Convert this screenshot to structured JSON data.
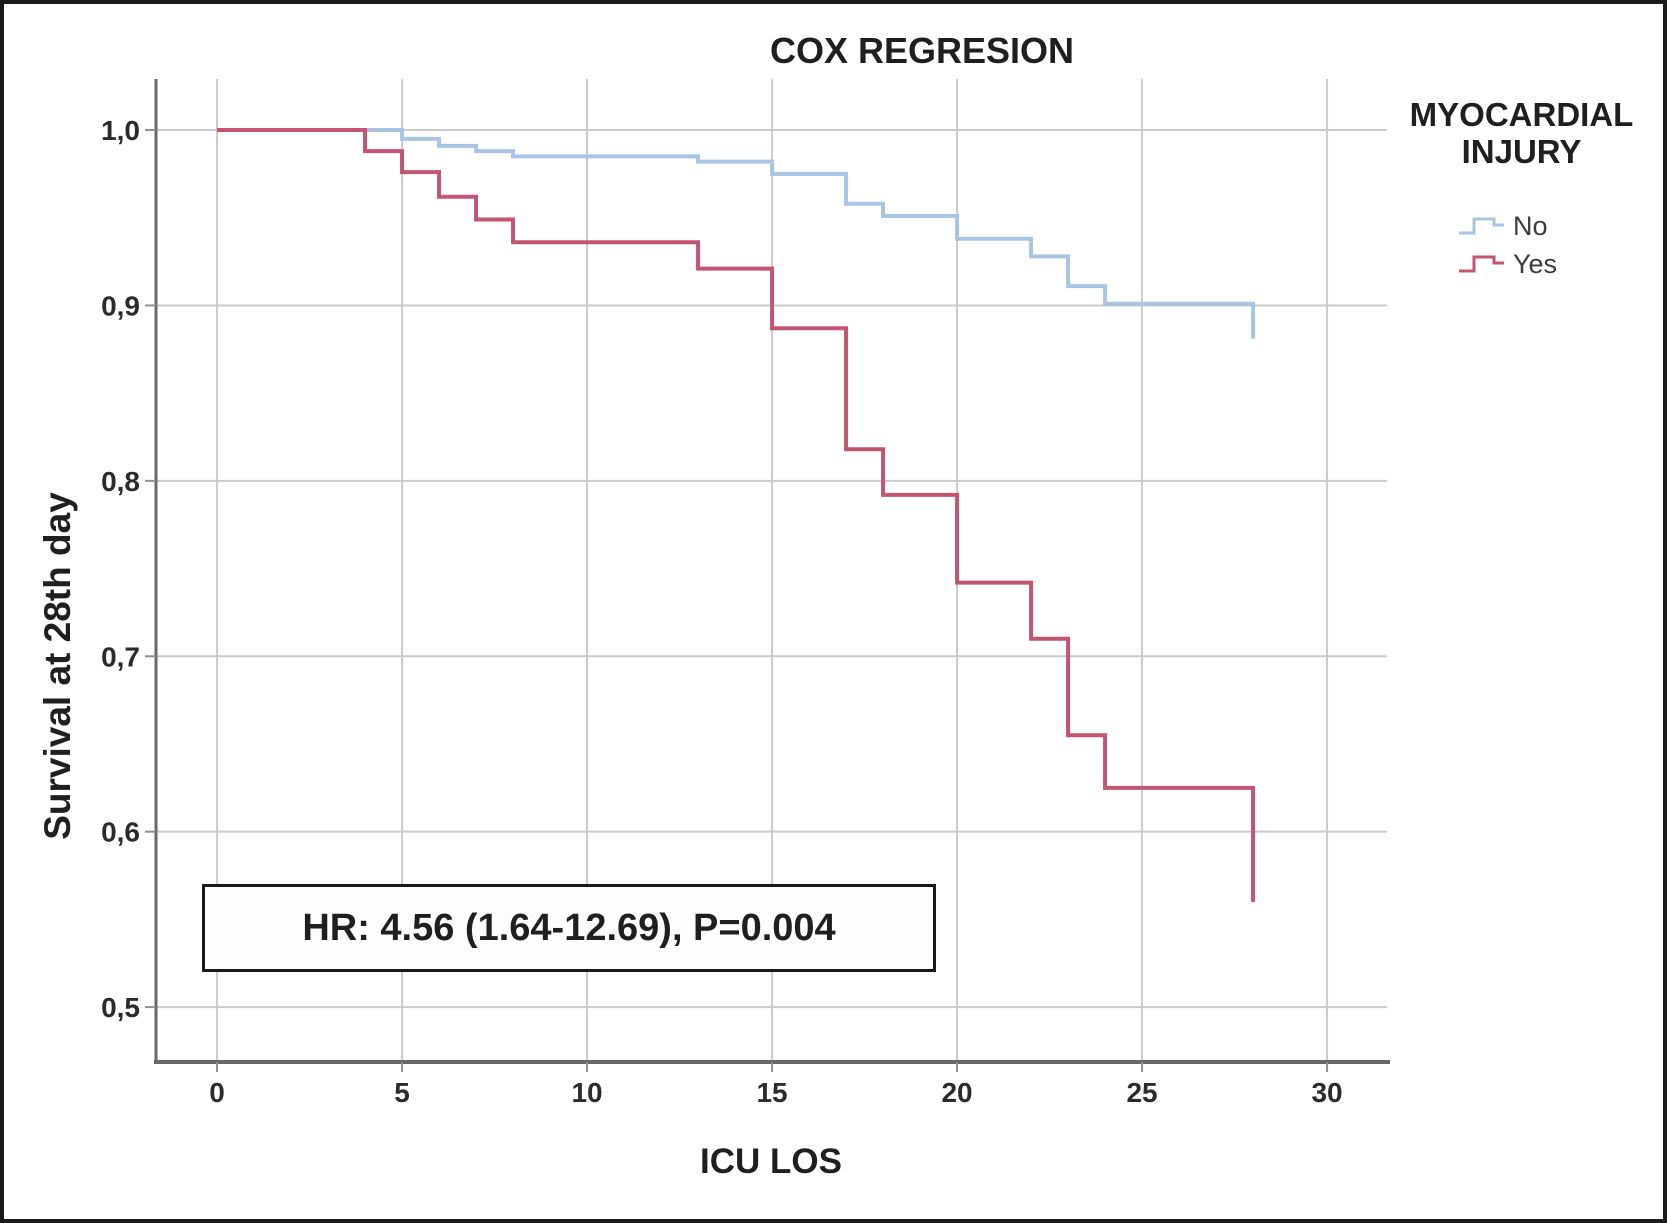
{
  "figure": {
    "title": "COX REGRESION",
    "annotation_text": "HR: 4.56 (1.64-12.69), P=0.004"
  },
  "axes": {
    "x_label": "ICU LOS",
    "y_label": "Survival at 28th day"
  },
  "legend": {
    "title_line1": "MYOCARDIAL",
    "title_line2": "INJURY",
    "items": [
      {
        "label": "No",
        "color": "#a9c5e5"
      },
      {
        "label": "Yes",
        "color": "#c45571"
      }
    ]
  },
  "chart_data": {
    "type": "line",
    "subtype": "kaplan-meier-step",
    "title": "COX REGRESION",
    "xlabel": "ICU LOS",
    "ylabel": "Survival at 28th day",
    "grid": true,
    "legend_position": "right",
    "x_ticks": [
      {
        "v": 0,
        "label": "0"
      },
      {
        "v": 5,
        "label": "5"
      },
      {
        "v": 10,
        "label": "10"
      },
      {
        "v": 15,
        "label": "15"
      },
      {
        "v": 20,
        "label": "20"
      },
      {
        "v": 25,
        "label": "25"
      },
      {
        "v": 30,
        "label": "30"
      }
    ],
    "y_ticks": [
      {
        "v": 1.0,
        "label": "1,0"
      },
      {
        "v": 0.9,
        "label": "0,9"
      },
      {
        "v": 0.8,
        "label": "0,8"
      },
      {
        "v": 0.7,
        "label": "0,7"
      },
      {
        "v": 0.6,
        "label": "0,6"
      },
      {
        "v": 0.5,
        "label": "0,5"
      }
    ],
    "x_range": [
      -1.65,
      31.62
    ],
    "y_range": [
      0.4687,
      1.0291
    ],
    "colors": {
      "grid": "#cbcbcb",
      "axis": "#686868",
      "tick": "#8f8f8f"
    },
    "start": {
      "t": 0,
      "s": 1.0
    },
    "series": [
      {
        "name": "No",
        "color": "#a9c5e5",
        "drops": [
          [
            5,
            0.995
          ],
          [
            6,
            0.991
          ],
          [
            7,
            0.988
          ],
          [
            8,
            0.985
          ],
          [
            13,
            0.982
          ],
          [
            15,
            0.975
          ],
          [
            17,
            0.958
          ],
          [
            18,
            0.951
          ],
          [
            20,
            0.938
          ],
          [
            22,
            0.928
          ],
          [
            23,
            0.911
          ],
          [
            24,
            0.901
          ],
          [
            28,
            0.881
          ]
        ]
      },
      {
        "name": "Yes",
        "color": "#c45571",
        "drops": [
          [
            4,
            0.988
          ],
          [
            5,
            0.976
          ],
          [
            6,
            0.962
          ],
          [
            7,
            0.949
          ],
          [
            8,
            0.936
          ],
          [
            13,
            0.921
          ],
          [
            15,
            0.887
          ],
          [
            17,
            0.818
          ],
          [
            18,
            0.792
          ],
          [
            20,
            0.742
          ],
          [
            22,
            0.71
          ],
          [
            23,
            0.655
          ],
          [
            24,
            0.625
          ],
          [
            28,
            0.56
          ]
        ]
      }
    ],
    "annotation": {
      "text": "HR: 4.56 (1.64-12.69), P=0.004"
    }
  }
}
